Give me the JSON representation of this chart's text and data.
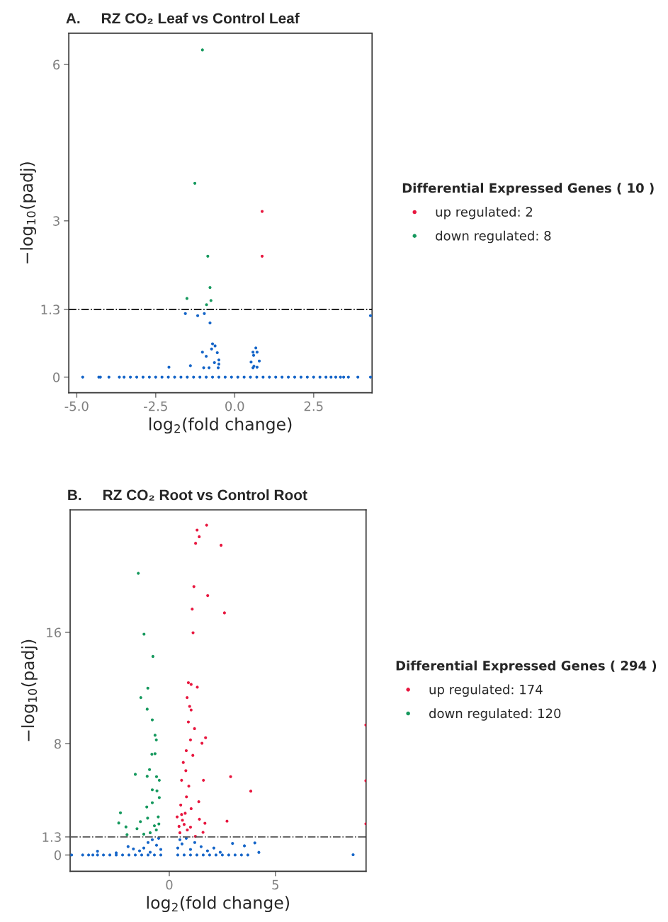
{
  "chart_data": [
    {
      "type": "scatter",
      "title": "A.     RZ CO₂ Leaf vs Control Leaf",
      "xlabel": "log$_{2}$(fold change)",
      "ylabel": "−log$_{10}$(padj)",
      "legend_title": "Differential Expressed Genes ( 10 )",
      "xlim": [
        -5.25,
        4.35
      ],
      "ylim": [
        -0.3,
        6.6
      ],
      "xticks": [
        {
          "value": -5,
          "label": "-5.0"
        },
        {
          "value": -2.5,
          "label": "-2.5"
        },
        {
          "value": 0,
          "label": "0.0"
        },
        {
          "value": 2.5,
          "label": "2.5"
        }
      ],
      "yticks": [
        0,
        1.3,
        3,
        6
      ],
      "grid": false,
      "legend": "right",
      "marker": "circle",
      "ref_lines": [
        {
          "axis": "y",
          "value": 1.3,
          "color": "#000000",
          "line_style": "dashdot"
        }
      ],
      "series": [
        {
          "color": "#1565c8",
          "x": [
            -4.81,
            -4.3,
            -4.25,
            -3.98,
            -3.65,
            -3.5,
            -3.3,
            -3.1,
            -2.9,
            -2.7,
            -2.5,
            -2.3,
            -2.1,
            -1.9,
            -1.7,
            -1.5,
            -1.3,
            -1.1,
            -0.9,
            -0.7,
            -0.5,
            -0.3,
            -0.1,
            0.1,
            0.3,
            0.5,
            0.7,
            0.9,
            1.1,
            1.3,
            1.5,
            1.7,
            1.9,
            2.1,
            2.3,
            2.5,
            2.7,
            2.89,
            3.05,
            3.2,
            3.35,
            3.45,
            3.6,
            3.9,
            4.3,
            -1.56,
            -1.17,
            -0.96,
            -0.78,
            -0.7,
            -0.62,
            -0.73,
            -1.02,
            -0.55,
            -0.9,
            -2.08,
            -1.4,
            -0.98,
            -0.81,
            -0.64,
            -0.5,
            -0.52,
            -0.5,
            0.67,
            0.58,
            0.71,
            0.6,
            0.52,
            0.78,
            0.61,
            0.71,
            0.58,
            4.3
          ],
          "values": [
            0,
            0,
            0,
            0,
            0,
            0,
            0,
            0,
            0,
            0,
            0,
            0,
            0,
            0,
            0,
            0,
            0,
            0,
            0,
            0,
            0,
            0,
            0,
            0,
            0,
            0,
            0,
            0,
            0,
            0,
            0,
            0,
            0,
            0,
            0,
            0,
            0,
            0,
            0,
            0,
            0,
            0,
            0,
            0,
            0,
            1.22,
            1.18,
            1.22,
            1.04,
            0.64,
            0.6,
            0.54,
            0.48,
            0.47,
            0.4,
            0.19,
            0.22,
            0.18,
            0.18,
            0.28,
            0.25,
            0.18,
            0.33,
            0.56,
            0.48,
            0.48,
            0.42,
            0.29,
            0.31,
            0.21,
            0.19,
            0.18,
            1.18
          ]
        },
        {
          "name": "up regulated: 2",
          "color": "#e8173f",
          "x": [
            0.87,
            0.87
          ],
          "values": [
            3.18,
            2.32
          ]
        },
        {
          "name": "down regulated: 8",
          "color": "#16995e",
          "x": [
            -1.02,
            -1.26,
            -0.85,
            -0.78,
            -1.51,
            -0.75,
            -0.89
          ],
          "values": [
            6.28,
            3.72,
            2.32,
            1.72,
            1.51,
            1.47,
            1.39
          ]
        }
      ]
    },
    {
      "type": "scatter",
      "title": "B.     RZ CO₂ Root vs Control Root",
      "xlabel": "log$_{2}$(fold change)",
      "ylabel": "−log$_{10}$(padj)",
      "legend_title": "Differential Expressed Genes ( 294 )",
      "xlim": [
        -4.67,
        9.27
      ],
      "ylim": [
        -1.17,
        24.8
      ],
      "xticks": [
        0,
        5
      ],
      "yticks": [
        0,
        1.3,
        8,
        16
      ],
      "grid": false,
      "legend": "right",
      "marker": "circle",
      "ref_lines": [
        {
          "axis": "y",
          "value": 1.3,
          "color": "#555555",
          "line_style": "dashdot"
        }
      ],
      "series": [
        {
          "color": "#1565c8",
          "x": [
            -4.6,
            -4.08,
            -3.8,
            -3.6,
            -3.38,
            -3.1,
            -2.8,
            -2.5,
            -2.2,
            -1.9,
            -1.6,
            -1.3,
            -1.0,
            -0.7,
            -0.4,
            0.4,
            0.7,
            1.0,
            1.3,
            1.6,
            1.9,
            2.2,
            2.5,
            2.8,
            3.1,
            3.4,
            3.7,
            8.66,
            -1.2,
            -1.0,
            -0.8,
            -0.6,
            -0.5,
            -0.4,
            -1.4,
            -0.9,
            0.4,
            0.5,
            0.6,
            0.8,
            1.0,
            1.2,
            1.5,
            1.8,
            2.1,
            2.4,
            2.98,
            3.54,
            4.03,
            4.22,
            -1.94,
            -1.69,
            -3.38,
            -2.5
          ],
          "values": [
            0,
            0,
            0,
            0,
            0,
            0,
            0,
            0,
            0,
            0,
            0,
            0,
            0,
            0,
            0,
            0,
            0,
            0,
            0,
            0,
            0,
            0,
            0,
            0,
            0,
            0,
            0,
            0.02,
            0.5,
            0.9,
            1.1,
            0.7,
            1.2,
            0.4,
            0.3,
            0.2,
            0.5,
            1.1,
            0.8,
            1.2,
            0.4,
            0.9,
            0.6,
            0.3,
            0.5,
            0.2,
            0.83,
            0.66,
            0.87,
            0.19,
            0.61,
            0.44,
            0.27,
            0.15
          ]
        },
        {
          "name": "up regulated: 174",
          "color": "#e8173f",
          "x": [
            1.76,
            1.31,
            1.41,
            1.24,
            2.44,
            1.16,
            1.81,
            1.08,
            2.6,
            1.12,
            0.9,
            1.03,
            1.32,
            0.84,
            0.96,
            1.03,
            0.9,
            1.19,
            1.71,
            1.0,
            1.54,
            0.8,
            1.11,
            0.66,
            0.78,
            2.89,
            1.61,
            0.58,
            0.92,
            3.84,
            0.81,
            1.39,
            0.54,
            1.03,
            1.42,
            2.72,
            1.68,
            1.59,
            1.23,
            0.37,
            0.46,
            0.58,
            0.7,
            0.85,
            0.5,
            0.62,
            0.75,
            1.0,
            9.26,
            9.26,
            9.26
          ],
          "values": [
            23.7,
            23.35,
            22.87,
            22.4,
            22.26,
            19.29,
            18.64,
            17.67,
            17.4,
            15.97,
            12.38,
            12.26,
            12.06,
            11.31,
            10.68,
            10.42,
            9.56,
            9.08,
            8.43,
            8.27,
            8.03,
            7.5,
            7.16,
            6.65,
            6.06,
            5.63,
            5.37,
            5.37,
            4.95,
            4.59,
            4.18,
            3.83,
            3.59,
            3.33,
            2.57,
            2.43,
            2.28,
            1.63,
            1.34,
            2.74,
            2.06,
            2.91,
            2.2,
            1.8,
            1.6,
            2.5,
            3.0,
            2.0,
            9.34,
            5.34,
            2.24
          ]
        },
        {
          "name": "down regulated: 120",
          "color": "#16995e",
          "x": [
            -1.46,
            -1.19,
            -0.77,
            -1.01,
            -1.34,
            -1.04,
            -0.8,
            -0.67,
            -0.61,
            -0.82,
            -0.67,
            -0.93,
            -1.6,
            -1.04,
            -0.6,
            -0.47,
            -0.8,
            -0.58,
            -0.47,
            -0.8,
            -1.06,
            -2.3,
            -2.38,
            -2.04,
            -1.99,
            -1.52,
            -1.36,
            -1.02,
            -0.52,
            -0.49,
            -0.61,
            -0.7,
            -0.9,
            -1.2
          ],
          "values": [
            20.24,
            15.87,
            14.27,
            11.99,
            11.31,
            10.48,
            9.71,
            8.61,
            8.27,
            7.24,
            7.28,
            6.14,
            5.8,
            5.66,
            5.63,
            5.37,
            4.69,
            4.61,
            4.13,
            3.76,
            3.45,
            3.03,
            2.3,
            2.02,
            1.46,
            1.89,
            2.4,
            2.65,
            2.74,
            2.23,
            1.8,
            2.1,
            1.6,
            1.5
          ]
        }
      ]
    }
  ]
}
